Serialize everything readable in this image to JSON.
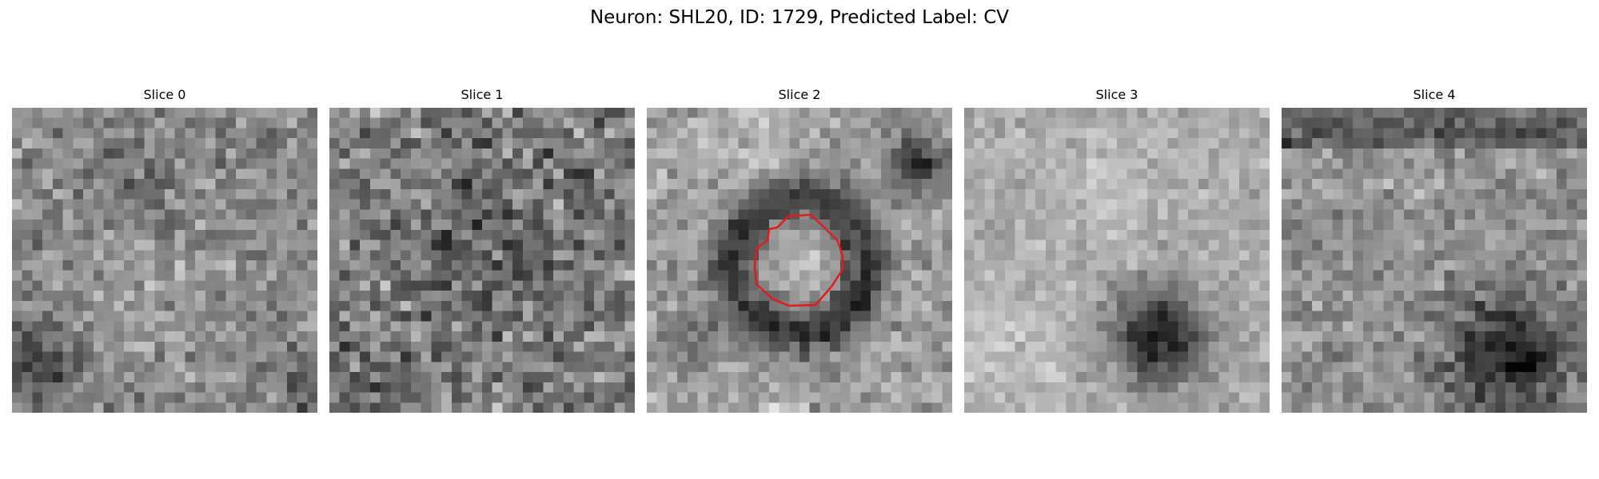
{
  "figure": {
    "title": "Neuron: SHL20, ID: 1729, Predicted Label: CV",
    "colormap": "gray",
    "outline_color": "#e31a1c"
  },
  "slices": [
    {
      "title": "Slice 0",
      "has_outline": false
    },
    {
      "title": "Slice 1",
      "has_outline": false
    },
    {
      "title": "Slice 2",
      "has_outline": true
    },
    {
      "title": "Slice 3",
      "has_outline": false
    },
    {
      "title": "Slice 4",
      "has_outline": false
    }
  ]
}
